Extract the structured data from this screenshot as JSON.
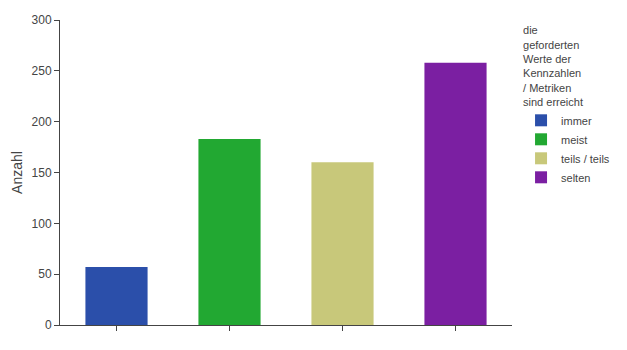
{
  "chart_data": {
    "type": "bar",
    "categories": [
      "immer",
      "meist",
      "teils / teils",
      "selten"
    ],
    "values": [
      57,
      183,
      160,
      258
    ],
    "colors": [
      "#2b4faa",
      "#22a832",
      "#c8c87a",
      "#7b1fa2"
    ],
    "ylabel": "Anzahl",
    "ylim": [
      0,
      300
    ],
    "yticks": [
      0,
      50,
      100,
      150,
      200,
      250,
      300
    ],
    "legend_title": "die\ngeforderten\nWerte der\nKennzahlen\n/ Metriken\nsind erreicht",
    "legend": "right",
    "grid": false,
    "tick_labels": "y"
  }
}
